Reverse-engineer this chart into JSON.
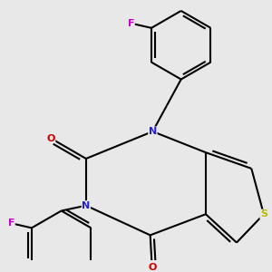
{
  "background_color": "#e8e8e8",
  "lw": 1.5,
  "atom_colors": {
    "C": "black",
    "N": "#2222cc",
    "O": "#cc0000",
    "S": "#bbbb00",
    "F": "#cc00cc"
  },
  "font_size": 8
}
